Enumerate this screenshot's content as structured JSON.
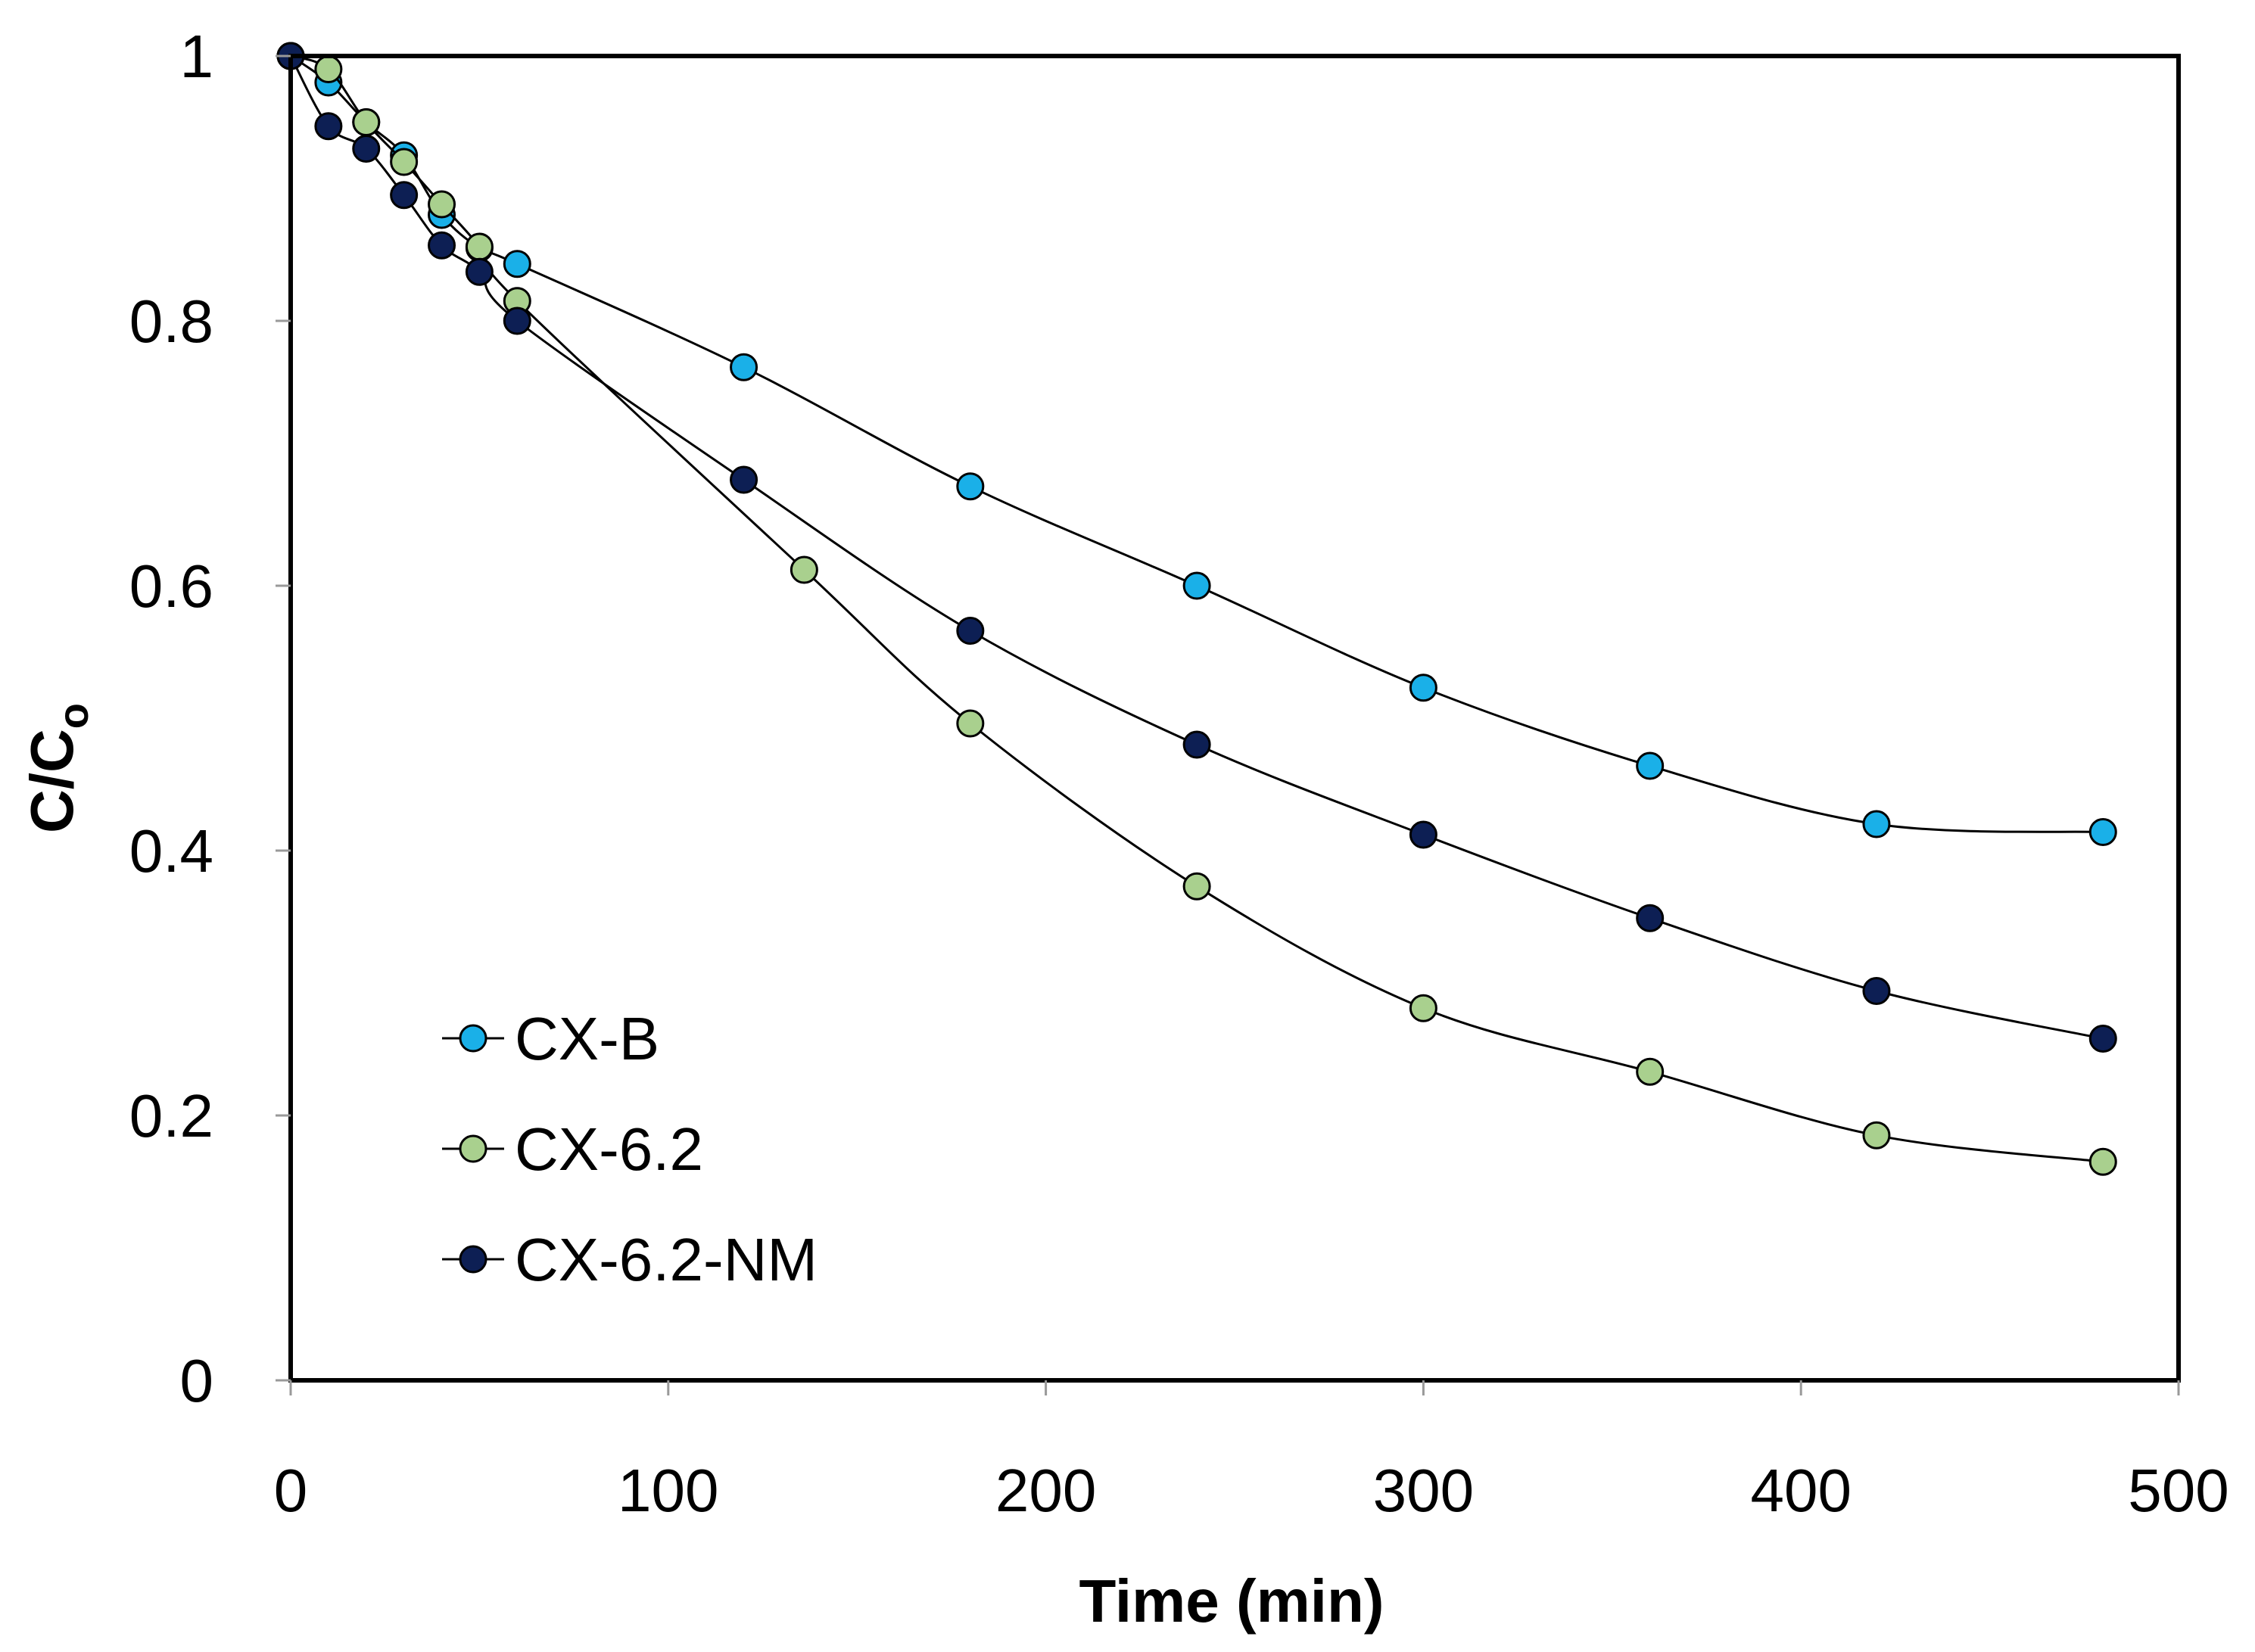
{
  "chart_data": {
    "type": "line",
    "title": "",
    "xlabel": "Time (min)",
    "ylabel_main": "C/C",
    "ylabel_sub": "o",
    "xlim": [
      0,
      500
    ],
    "ylim": [
      0,
      1
    ],
    "xticks": [
      0,
      100,
      200,
      300,
      400,
      500
    ],
    "xtick_labels": [
      "0",
      "100",
      "200",
      "300",
      "400",
      "500"
    ],
    "yticks": [
      0,
      0.2,
      0.4,
      0.6,
      0.8,
      1
    ],
    "ytick_labels": [
      "0",
      "0.2",
      "0.4",
      "0.6",
      "0.8",
      "1"
    ],
    "grid": false,
    "legend_position": "bottom-left",
    "series": [
      {
        "name": "CX-B",
        "color": "#1ab0e8",
        "x": [
          0,
          10,
          20,
          30,
          40,
          50,
          60,
          120,
          180,
          240,
          300,
          360,
          420,
          480
        ],
        "y": [
          1.0,
          0.98,
          0.95,
          0.925,
          0.88,
          0.855,
          0.843,
          0.765,
          0.675,
          0.6,
          0.523,
          0.464,
          0.42,
          0.414
        ]
      },
      {
        "name": "CX-6.2",
        "color": "#a9d08e",
        "x": [
          0,
          10,
          20,
          30,
          40,
          50,
          60,
          136,
          180,
          240,
          300,
          360,
          420,
          480
        ],
        "y": [
          1.0,
          0.99,
          0.95,
          0.92,
          0.888,
          0.856,
          0.815,
          0.612,
          0.496,
          0.373,
          0.281,
          0.233,
          0.185,
          0.165
        ]
      },
      {
        "name": "CX-6.2-NM",
        "color": "#0d1f54",
        "x": [
          0,
          10,
          20,
          30,
          40,
          50,
          60,
          120,
          180,
          240,
          300,
          360,
          420,
          480
        ],
        "y": [
          1.0,
          0.947,
          0.93,
          0.895,
          0.857,
          0.837,
          0.8,
          0.68,
          0.566,
          0.48,
          0.412,
          0.349,
          0.294,
          0.258
        ]
      }
    ]
  }
}
